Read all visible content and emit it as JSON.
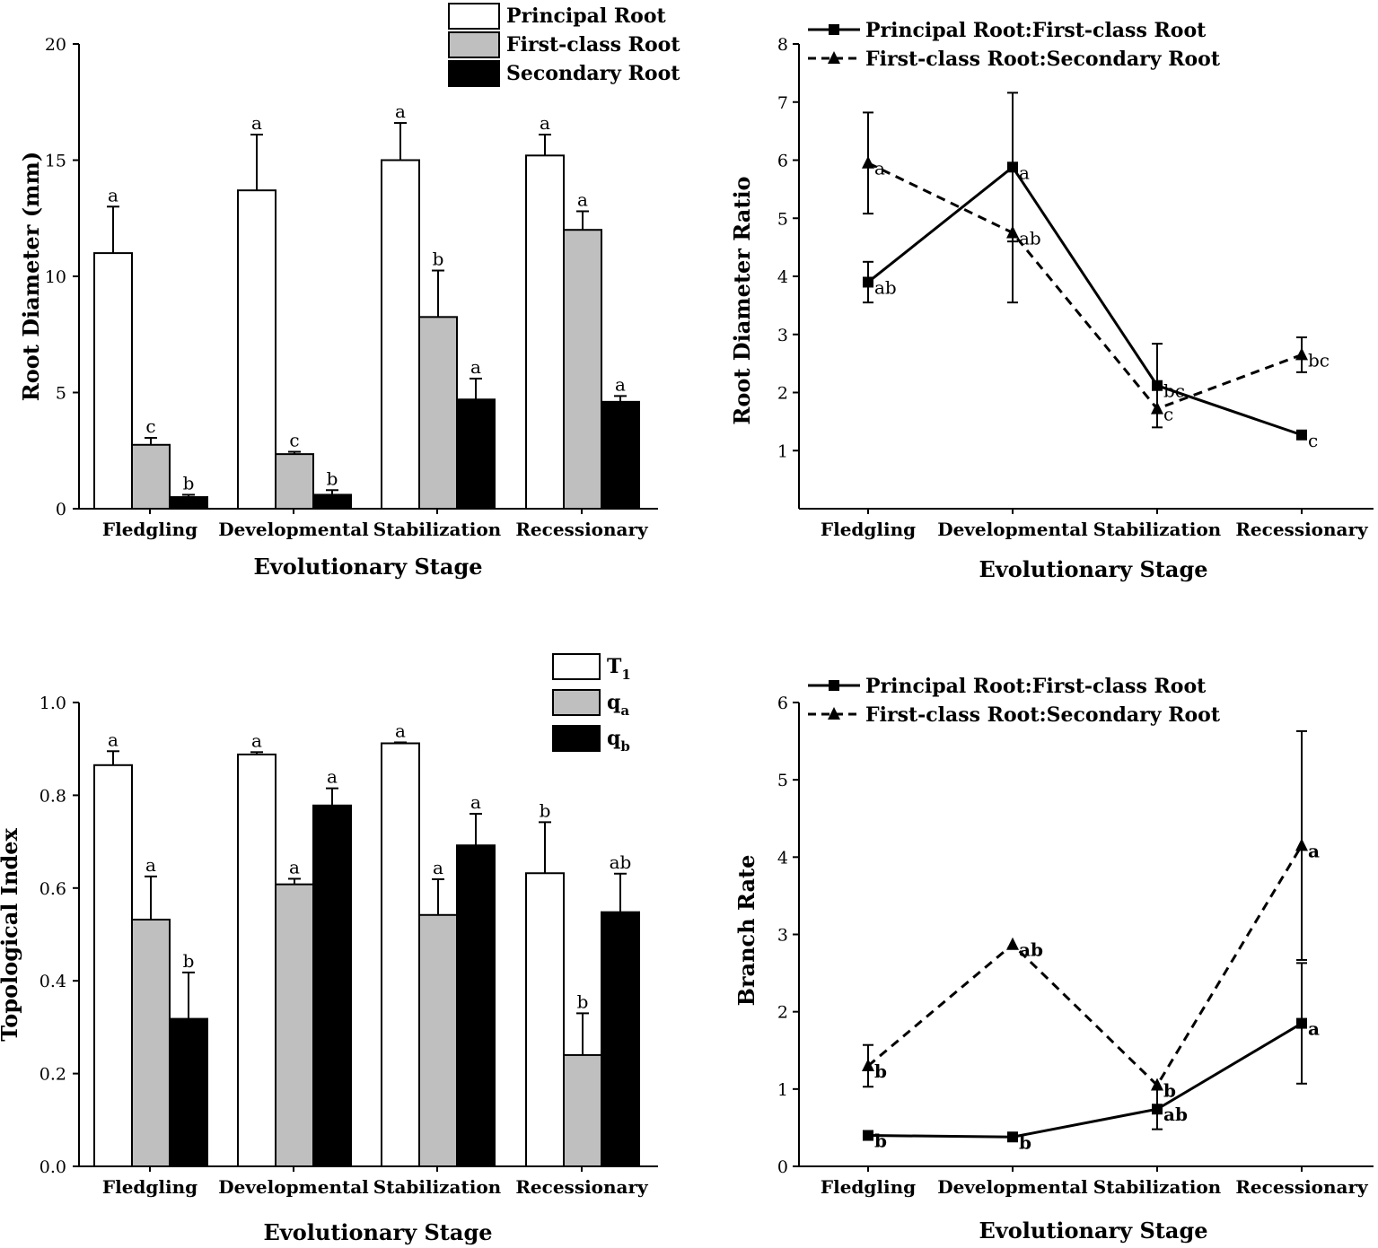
{
  "chart_data": [
    {
      "type": "bar",
      "panel": "top-left",
      "xlabel": "Evolutionary Stage",
      "ylabel": "Root Diameter (mm)",
      "ylim": [
        0,
        20
      ],
      "yticks": [
        "0",
        "5",
        "10",
        "15",
        "20"
      ],
      "categories": [
        "Fledgling",
        "Developmental",
        "Stabilization",
        "Recessionary"
      ],
      "legend": "top-right",
      "series": [
        {
          "name": "Principal Root",
          "color": "#ffffff",
          "values": [
            11.0,
            13.7,
            15.0,
            15.2
          ],
          "errors": [
            2.0,
            2.4,
            1.6,
            0.9
          ],
          "labels": [
            "a",
            "a",
            "a",
            "a"
          ]
        },
        {
          "name": "First-class Root",
          "color": "#bfbfbf",
          "values": [
            2.75,
            2.35,
            8.25,
            12.0
          ],
          "errors": [
            0.3,
            0.1,
            2.0,
            0.8
          ],
          "labels": [
            "c",
            "c",
            "b",
            "a"
          ]
        },
        {
          "name": "Secondary Root",
          "color": "#000000",
          "values": [
            0.5,
            0.6,
            4.7,
            4.6
          ],
          "errors": [
            0.1,
            0.2,
            0.9,
            0.25
          ],
          "labels": [
            "b",
            "b",
            "a",
            "a"
          ]
        }
      ]
    },
    {
      "type": "line",
      "panel": "top-right",
      "xlabel": "Evolutionary Stage",
      "ylabel": "Root Diameter Ratio",
      "ylim": [
        0,
        8
      ],
      "yticks": [
        "1",
        "2",
        "3",
        "4",
        "5",
        "6",
        "7",
        "8"
      ],
      "categories": [
        "Fledgling",
        "Developmental",
        "Stabilization",
        "Recessionary"
      ],
      "legend": "top-left",
      "series": [
        {
          "name": "Principal Root:First-class Root",
          "style": "solid",
          "marker": "square",
          "values": [
            3.9,
            5.88,
            2.12,
            1.27
          ],
          "errors": [
            0.35,
            1.28,
            0.72,
            0
          ],
          "labels": [
            "ab",
            "a",
            "bc",
            "c"
          ]
        },
        {
          "name": "First-class Root:Secondary Root",
          "style": "dashed",
          "marker": "triangle",
          "values": [
            5.95,
            4.75,
            1.72,
            2.65
          ],
          "errors": [
            0.87,
            1.2,
            0,
            0.3
          ],
          "labels": [
            "a",
            "ab",
            "c",
            "bc"
          ]
        }
      ]
    },
    {
      "type": "bar",
      "panel": "bottom-left",
      "xlabel": "Evolutionary Stage",
      "ylabel": "Topological Index",
      "ylim": [
        0,
        1.0
      ],
      "yticks": [
        "0.0",
        "0.2",
        "0.4",
        "0.6",
        "0.8",
        "1.0"
      ],
      "categories": [
        "Fledgling",
        "Developmental",
        "Stabilization",
        "Recessionary"
      ],
      "legend": "top-right",
      "series": [
        {
          "name": "T",
          "sub": "1",
          "color": "#ffffff",
          "values": [
            0.865,
            0.888,
            0.912,
            0.632
          ],
          "errors": [
            0.03,
            0.005,
            0.002,
            0.11
          ],
          "labels": [
            "a",
            "a",
            "a",
            "b"
          ]
        },
        {
          "name": "q",
          "sub": "a",
          "color": "#bfbfbf",
          "values": [
            0.532,
            0.608,
            0.542,
            0.24
          ],
          "errors": [
            0.093,
            0.012,
            0.077,
            0.09
          ],
          "labels": [
            "a",
            "a",
            "a",
            "b"
          ]
        },
        {
          "name": "q",
          "sub": "b",
          "color": "#000000",
          "values": [
            0.318,
            0.778,
            0.692,
            0.548
          ],
          "errors": [
            0.1,
            0.037,
            0.068,
            0.083
          ],
          "labels": [
            "b",
            "a",
            "a",
            "ab"
          ]
        }
      ]
    },
    {
      "type": "line",
      "panel": "bottom-right",
      "xlabel": "Evolutionary Stage",
      "ylabel": "Branch Rate",
      "ylim": [
        0,
        6
      ],
      "yticks": [
        "0",
        "1",
        "2",
        "3",
        "4",
        "5",
        "6"
      ],
      "categories": [
        "Fledgling",
        "Developmental",
        "Stabilization",
        "Recessionary"
      ],
      "legend": "top-left",
      "series": [
        {
          "name": "Principal Root:First-class Root",
          "style": "solid",
          "marker": "square",
          "values": [
            0.4,
            0.38,
            0.74,
            1.85
          ],
          "errors": [
            0,
            0,
            0.26,
            0.78
          ],
          "labels": [
            "b",
            "b",
            "ab",
            "a"
          ]
        },
        {
          "name": "First-class Root:Secondary Root",
          "style": "dashed",
          "marker": "triangle",
          "values": [
            1.3,
            2.87,
            1.05,
            4.15
          ],
          "errors": [
            0.27,
            0,
            0,
            1.48
          ],
          "labels": [
            "b",
            "ab",
            "b",
            "a"
          ]
        }
      ]
    }
  ]
}
